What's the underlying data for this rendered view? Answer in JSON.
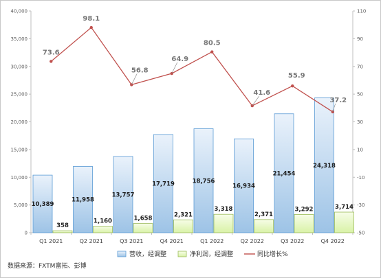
{
  "chart_data": {
    "type": "bar",
    "categories": [
      "Q1 2021",
      "Q2 2021",
      "Q3 2021",
      "Q4 2021",
      "Q1 2022",
      "Q2 2022",
      "Q3 2022",
      "Q4 2022"
    ],
    "series": [
      {
        "name": "营收，经调整",
        "kind": "bar",
        "axis": "left",
        "values": [
          10389,
          11958,
          13757,
          17719,
          18756,
          16934,
          21454,
          24318
        ],
        "color": "#9dc3e6"
      },
      {
        "name": "净利润，经调整",
        "kind": "bar",
        "axis": "left",
        "values": [
          358,
          1160,
          1658,
          2321,
          3318,
          2371,
          3292,
          3714
        ],
        "color": "#d9f2a7"
      },
      {
        "name": "同比增长%",
        "kind": "line",
        "axis": "right",
        "values": [
          73.6,
          98.1,
          56.8,
          64.9,
          80.5,
          41.6,
          55.9,
          37.2
        ],
        "color": "#c0504d"
      }
    ],
    "data_labels": {
      "revenue": [
        "10,389",
        "11,958",
        "13,757",
        "17,719",
        "18,756",
        "16,934",
        "21,454",
        "24,318"
      ],
      "profit": [
        "358",
        "1,160",
        "1,658",
        "2,321",
        "3,318",
        "2,371",
        "3,292",
        "3,714"
      ],
      "growth": [
        "73.6",
        "98.1",
        "56.8",
        "64.9",
        "80.5",
        "41.6",
        "55.9",
        "37.2"
      ]
    },
    "y_left": {
      "ylim": [
        0,
        40000
      ],
      "ticks": [
        0,
        5000,
        10000,
        15000,
        20000,
        25000,
        30000,
        35000,
        40000
      ],
      "tick_labels": [
        "0",
        "5,000",
        "10,000",
        "15,000",
        "20,000",
        "25,000",
        "30,000",
        "35,000",
        "40,000"
      ]
    },
    "y_right": {
      "ylim": [
        -50,
        110
      ],
      "ticks": [
        -50,
        -30,
        -10,
        10,
        30,
        50,
        70,
        90,
        110
      ],
      "tick_labels": [
        "-50",
        "-30",
        "-10",
        "10",
        "30",
        "50",
        "70",
        "90",
        "110"
      ]
    },
    "grid": false,
    "legend_position": "bottom"
  },
  "source_text": "数据来源：FXTM富拓、彭博"
}
